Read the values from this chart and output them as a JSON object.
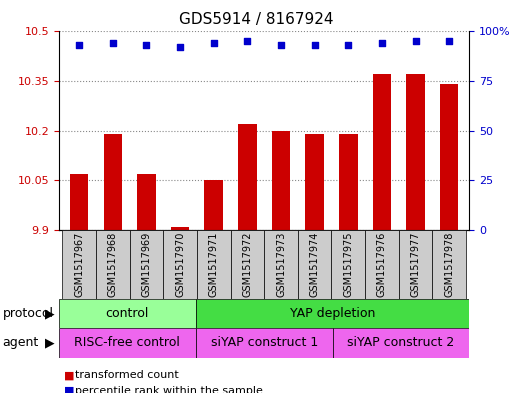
{
  "title": "GDS5914 / 8167924",
  "samples": [
    "GSM1517967",
    "GSM1517968",
    "GSM1517969",
    "GSM1517970",
    "GSM1517971",
    "GSM1517972",
    "GSM1517973",
    "GSM1517974",
    "GSM1517975",
    "GSM1517976",
    "GSM1517977",
    "GSM1517978"
  ],
  "transformed_counts": [
    10.07,
    10.19,
    10.07,
    9.91,
    10.05,
    10.22,
    10.2,
    10.19,
    10.19,
    10.37,
    10.37,
    10.34
  ],
  "percentile_ranks": [
    93,
    94,
    93,
    92,
    94,
    95,
    93,
    93,
    93,
    94,
    95,
    95
  ],
  "ylim_left": [
    9.9,
    10.5
  ],
  "ylim_right": [
    0,
    100
  ],
  "yticks_left": [
    9.9,
    10.05,
    10.2,
    10.35,
    10.5
  ],
  "yticks_right": [
    0,
    25,
    50,
    75,
    100
  ],
  "ytick_labels_left": [
    "9.9",
    "10.05",
    "10.2",
    "10.35",
    "10.5"
  ],
  "ytick_labels_right": [
    "0",
    "25",
    "50",
    "75",
    "100%"
  ],
  "bar_color": "#cc0000",
  "dot_color": "#0000cc",
  "protocol_labels": [
    {
      "text": "control",
      "start": 0,
      "end": 4,
      "color": "#99ff99"
    },
    {
      "text": "YAP depletion",
      "start": 4,
      "end": 12,
      "color": "#44dd44"
    }
  ],
  "agent_labels": [
    {
      "text": "RISC-free control",
      "start": 0,
      "end": 4
    },
    {
      "text": "siYAP construct 1",
      "start": 4,
      "end": 8
    },
    {
      "text": "siYAP construct 2",
      "start": 8,
      "end": 12
    }
  ],
  "agent_color": "#ee66ee",
  "legend_items": [
    {
      "label": "transformed count",
      "color": "#cc0000"
    },
    {
      "label": "percentile rank within the sample",
      "color": "#0000cc"
    }
  ],
  "protocol_row_label": "protocol",
  "agent_row_label": "agent",
  "grid_color": "#888888",
  "tick_color_left": "#cc0000",
  "tick_color_right": "#0000cc",
  "bar_width": 0.55,
  "sample_box_color": "#cccccc",
  "border_color": "#000000"
}
